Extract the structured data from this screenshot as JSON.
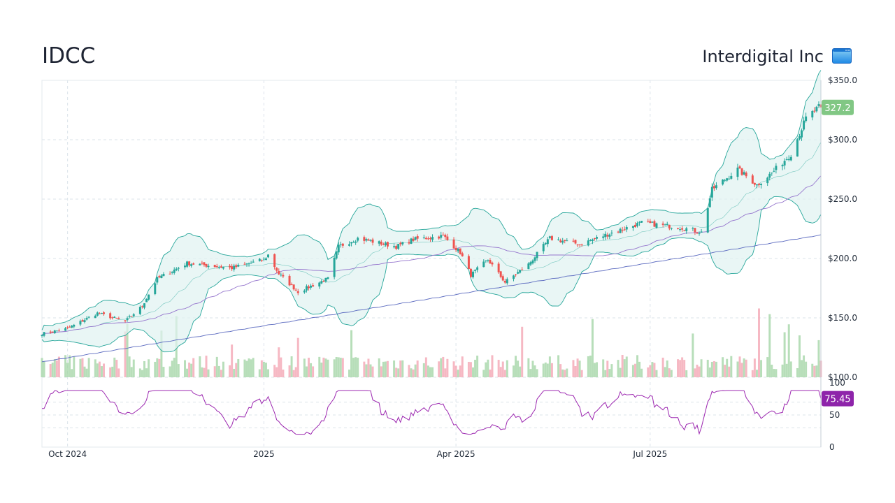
{
  "header": {
    "ticker": "IDCC",
    "company": "Interdigital Inc",
    "logo_icon": "window-icon"
  },
  "colors": {
    "up": "#26a69a",
    "down": "#ef5350",
    "band_fill": "#e0f2f1",
    "band_line": "#26a69a",
    "ma_short": "#9575cd",
    "ma_long": "#5c6bc0",
    "rsi": "#9c27b0",
    "price_label_bg": "#81c784",
    "rsi_label_bg": "#8e24aa",
    "grid": "#dbe3ea"
  },
  "chart_data": [
    {
      "type": "candlestick",
      "title": "IDCC",
      "ylim": [
        100,
        350
      ],
      "y_ticks": [
        "$100.0",
        "$150.0",
        "$200.0",
        "$250.0",
        "$300.0",
        "$350.0"
      ],
      "x_ticks": [
        "Oct 2024",
        "2025",
        "Apr 2025",
        "Jul 2025"
      ],
      "grid": true,
      "last_price_label": "327.2",
      "overlays": [
        "Bollinger Bands",
        "Moving average (short)",
        "Moving average (long)",
        "Volume"
      ],
      "close_anchors": [
        {
          "date": "2024-09-20",
          "close": 137
        },
        {
          "date": "2024-10-01",
          "close": 141
        },
        {
          "date": "2024-10-15",
          "close": 154
        },
        {
          "date": "2024-10-28",
          "close": 147
        },
        {
          "date": "2024-11-05",
          "close": 160
        },
        {
          "date": "2024-11-12",
          "close": 183
        },
        {
          "date": "2024-11-26",
          "close": 196
        },
        {
          "date": "2024-12-17",
          "close": 192
        },
        {
          "date": "2025-01-01",
          "close": 199
        },
        {
          "date": "2025-01-03",
          "close": 203
        },
        {
          "date": "2025-01-08",
          "close": 187
        },
        {
          "date": "2025-01-17",
          "close": 172
        },
        {
          "date": "2025-01-31",
          "close": 183
        },
        {
          "date": "2025-02-05",
          "close": 210
        },
        {
          "date": "2025-02-14",
          "close": 217
        },
        {
          "date": "2025-03-04",
          "close": 210
        },
        {
          "date": "2025-03-12",
          "close": 216
        },
        {
          "date": "2025-03-26",
          "close": 219
        },
        {
          "date": "2025-04-03",
          "close": 205
        },
        {
          "date": "2025-04-08",
          "close": 186
        },
        {
          "date": "2025-04-16",
          "close": 199
        },
        {
          "date": "2025-04-24",
          "close": 180
        },
        {
          "date": "2025-05-05",
          "close": 195
        },
        {
          "date": "2025-05-15",
          "close": 217
        },
        {
          "date": "2025-05-29",
          "close": 212
        },
        {
          "date": "2025-06-12",
          "close": 221
        },
        {
          "date": "2025-06-27",
          "close": 230
        },
        {
          "date": "2025-07-16",
          "close": 226
        },
        {
          "date": "2025-07-25",
          "close": 222
        },
        {
          "date": "2025-07-30",
          "close": 258
        },
        {
          "date": "2025-08-11",
          "close": 275
        },
        {
          "date": "2025-08-20",
          "close": 262
        },
        {
          "date": "2025-08-27",
          "close": 272
        },
        {
          "date": "2025-09-05",
          "close": 288
        },
        {
          "date": "2025-09-12",
          "close": 318
        },
        {
          "date": "2025-09-18",
          "close": 327.2
        }
      ]
    },
    {
      "type": "line",
      "title": "RSI",
      "ylim": [
        0,
        100
      ],
      "y_ticks": [
        "0",
        "50",
        "100"
      ],
      "last_value_label": "75.45",
      "guide_levels": [
        30,
        50,
        70
      ]
    }
  ]
}
